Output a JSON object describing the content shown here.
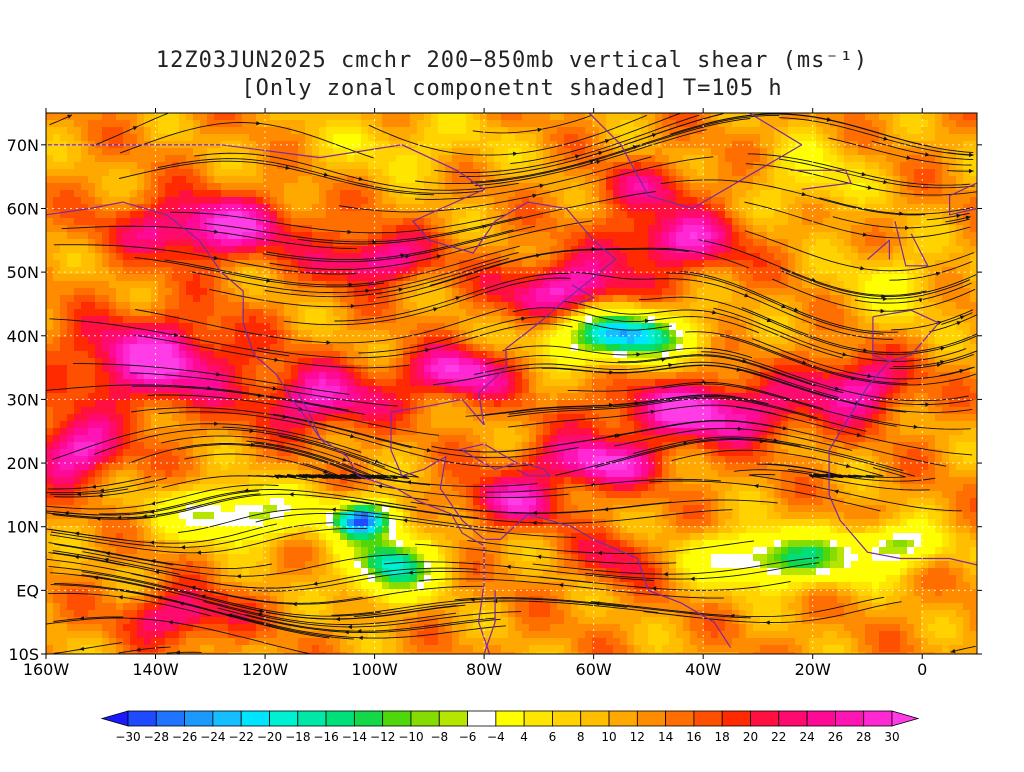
{
  "title": {
    "line1": "12Z03JUN2025 cmchr 200−850mb vertical shear (ms⁻¹)",
    "line2": "[Only zonal componetnt shaded] T=105 h"
  },
  "map": {
    "lon_range": [
      -160,
      10
    ],
    "lat_range": [
      -10,
      75
    ],
    "lat_labels": [
      {
        "value": 70,
        "text": "70N"
      },
      {
        "value": 60,
        "text": "60N"
      },
      {
        "value": 50,
        "text": "50N"
      },
      {
        "value": 40,
        "text": "40N"
      },
      {
        "value": 30,
        "text": "30N"
      },
      {
        "value": 20,
        "text": "20N"
      },
      {
        "value": 10,
        "text": "10N"
      },
      {
        "value": 0,
        "text": "EQ"
      },
      {
        "value": -10,
        "text": "10S"
      }
    ],
    "lon_labels": [
      {
        "value": -160,
        "text": "160W"
      },
      {
        "value": -140,
        "text": "140W"
      },
      {
        "value": -120,
        "text": "120W"
      },
      {
        "value": -100,
        "text": "100W"
      },
      {
        "value": -80,
        "text": "80W"
      },
      {
        "value": -60,
        "text": "60W"
      },
      {
        "value": -40,
        "text": "40W"
      },
      {
        "value": -20,
        "text": "20W"
      },
      {
        "value": 0,
        "text": "0"
      }
    ],
    "shear_cores": [
      {
        "lon": -130,
        "lat": 57,
        "val": 30,
        "sx": 16,
        "sy": 5
      },
      {
        "lon": -100,
        "lat": 52,
        "val": 28,
        "sx": 10,
        "sy": 4
      },
      {
        "lon": -65,
        "lat": 47,
        "val": 30,
        "sx": 12,
        "sy": 5
      },
      {
        "lon": -45,
        "lat": 55,
        "val": 28,
        "sx": 12,
        "sy": 5
      },
      {
        "lon": -50,
        "lat": 63,
        "val": 22,
        "sx": 10,
        "sy": 4
      },
      {
        "lon": -140,
        "lat": 36,
        "val": 30,
        "sx": 16,
        "sy": 7
      },
      {
        "lon": -155,
        "lat": 22,
        "val": 30,
        "sx": 9,
        "sy": 5
      },
      {
        "lon": -110,
        "lat": 30,
        "val": 28,
        "sx": 12,
        "sy": 5
      },
      {
        "lon": -85,
        "lat": 34,
        "val": 30,
        "sx": 10,
        "sy": 4
      },
      {
        "lon": -40,
        "lat": 28,
        "val": 30,
        "sx": 18,
        "sy": 5
      },
      {
        "lon": -12,
        "lat": 32,
        "val": 28,
        "sx": 10,
        "sy": 5
      },
      {
        "lon": -60,
        "lat": 20,
        "val": 30,
        "sx": 12,
        "sy": 4
      },
      {
        "lon": -75,
        "lat": 14,
        "val": 26,
        "sx": 10,
        "sy": 4
      },
      {
        "lon": -135,
        "lat": -4,
        "val": 26,
        "sx": 10,
        "sy": 4
      },
      {
        "lon": -55,
        "lat": 5,
        "val": 22,
        "sx": 8,
        "sy": 4
      },
      {
        "lon": -125,
        "lat": 12,
        "val": -10,
        "sx": 13,
        "sy": 4
      },
      {
        "lon": -102,
        "lat": 11,
        "val": -28,
        "sx": 6,
        "sy": 3
      },
      {
        "lon": -97,
        "lat": 4,
        "val": -18,
        "sx": 8,
        "sy": 5
      },
      {
        "lon": -55,
        "lat": 40,
        "val": -24,
        "sx": 12,
        "sy": 4
      },
      {
        "lon": -25,
        "lat": 5,
        "val": -14,
        "sx": 16,
        "sy": 4
      },
      {
        "lon": -5,
        "lat": 7,
        "val": -10,
        "sx": 8,
        "sy": 3
      },
      {
        "lon": -20,
        "lat": 65,
        "val": 4,
        "sx": 10,
        "sy": 6
      },
      {
        "lon": -95,
        "lat": 70,
        "val": 6,
        "sx": 18,
        "sy": 5
      },
      {
        "lon": -5,
        "lat": 48,
        "val": 4,
        "sx": 10,
        "sy": 6
      }
    ],
    "base_shear": 12
  },
  "colorbar": {
    "levels": [
      "−30",
      "−28",
      "−26",
      "−24",
      "−22",
      "−20",
      "−18",
      "−16",
      "−14",
      "−12",
      "−10",
      "−8",
      "−6",
      "−4",
      "4",
      "6",
      "8",
      "10",
      "12",
      "14",
      "16",
      "18",
      "20",
      "22",
      "24",
      "26",
      "28",
      "30"
    ],
    "colors": [
      "#1a1aff",
      "#1f4bff",
      "#1f75ff",
      "#1a9aff",
      "#15bfff",
      "#00e5ff",
      "#00f0d2",
      "#00e8a8",
      "#00e07a",
      "#14d848",
      "#4ed80a",
      "#86dc00",
      "#b4e600",
      "#ffffff",
      "#ffff00",
      "#ffe600",
      "#ffd200",
      "#ffbe00",
      "#ffa800",
      "#ff8c00",
      "#ff6e00",
      "#ff4f00",
      "#ff2a00",
      "#ff1040",
      "#ff0a6e",
      "#ff0a96",
      "#ff14b4",
      "#ff28d2",
      "#ff3ce6"
    ]
  }
}
